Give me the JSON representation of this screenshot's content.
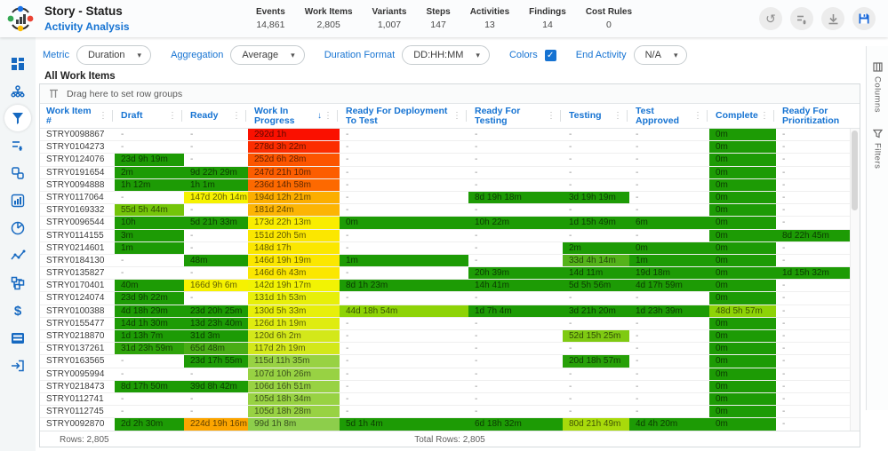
{
  "header": {
    "title": "Story - Status",
    "subtitle": "Activity Analysis",
    "stats": [
      {
        "label": "Events",
        "value": "14,861"
      },
      {
        "label": "Work Items",
        "value": "2,805"
      },
      {
        "label": "Variants",
        "value": "1,007"
      },
      {
        "label": "Steps",
        "value": "147"
      },
      {
        "label": "Activities",
        "value": "13"
      },
      {
        "label": "Findings",
        "value": "14"
      },
      {
        "label": "Cost Rules",
        "value": "0"
      }
    ],
    "actions": [
      "undo",
      "reset-list",
      "download",
      "save"
    ]
  },
  "sidebar_icons": [
    "dashboard",
    "process-map",
    "hourglass-analysis",
    "list-check",
    "flow-shapes",
    "bar-chart",
    "pie-chart",
    "trend-line",
    "hierarchy",
    "cost",
    "table-rows",
    "exit"
  ],
  "toolbar": {
    "metric_label": "Metric",
    "metric_value": "Duration",
    "aggregation_label": "Aggregation",
    "aggregation_value": "Average",
    "duration_format_label": "Duration Format",
    "duration_format_value": "DD:HH:MM",
    "colors_label": "Colors",
    "colors_checked": true,
    "end_activity_label": "End Activity",
    "end_activity_value": "N/A"
  },
  "section_title": "All Work Items",
  "grid": {
    "drag_hint": "Drag here to set row groups",
    "columns": [
      {
        "label": "Work Item #",
        "menu": true
      },
      {
        "label": "Draft",
        "menu": true
      },
      {
        "label": "Ready",
        "menu": true
      },
      {
        "label": "Work In Progress",
        "menu": true,
        "sort": "desc"
      },
      {
        "label": "Ready For Deployment To Test",
        "menu": true
      },
      {
        "label": "Ready For Testing",
        "menu": true
      },
      {
        "label": "Testing",
        "menu": true
      },
      {
        "label": "Test Approved",
        "menu": true
      },
      {
        "label": "Complete",
        "menu": true
      },
      {
        "label": "Ready For Prioritization",
        "menu": false
      }
    ],
    "palette": {
      "g": "#1d9b05",
      "g2": "#2ea30a",
      "g3": "#27a008",
      "gm": "#54b31a",
      "gm2": "#49ad15",
      "yg": "#8ed307",
      "yg2": "#74c509",
      "yg3": "#7fca12",
      "yg4": "#a8da0b",
      "lg": "#98d243",
      "lg2": "#8dce4b",
      "ly1": "#e7ef0a",
      "ly2": "#dfec10",
      "ly3": "#d3e81a",
      "y": "#f6f200",
      "y1": "#f9ed00",
      "y2": "#fbe700",
      "y3": "#f2f303",
      "am": "#fcae00",
      "am2": "#fcb404",
      "or": "#fca500",
      "o1": "#fc5500",
      "o1b": "#fc5d00",
      "o2": "#fd6900",
      "r1": "#fa1000",
      "r2": "#fc2d00"
    },
    "rows": [
      {
        "id": "STRY0098867",
        "cells": [
          "-",
          "-",
          [
            "292d 1h",
            "r1"
          ],
          "-",
          "-",
          "-",
          "-",
          [
            "0m",
            "g"
          ],
          "-"
        ]
      },
      {
        "id": "STRY0104273",
        "cells": [
          "-",
          "-",
          [
            "278d 3h 22m",
            "r2"
          ],
          "-",
          "-",
          "-",
          "-",
          [
            "0m",
            "g"
          ],
          "-"
        ]
      },
      {
        "id": "STRY0124076",
        "cells": [
          [
            "23d 9h 19m",
            "g"
          ],
          "-",
          [
            "252d 6h 28m",
            "o1"
          ],
          "-",
          "-",
          "-",
          "-",
          [
            "0m",
            "g"
          ],
          "-"
        ]
      },
      {
        "id": "STRY0191654",
        "cells": [
          [
            "2m",
            "g"
          ],
          [
            "9d 22h 29m",
            "g"
          ],
          [
            "247d 21h 10m",
            "o1b"
          ],
          "-",
          "-",
          "-",
          "-",
          [
            "0m",
            "g"
          ],
          "-"
        ]
      },
      {
        "id": "STRY0094888",
        "cells": [
          [
            "1h 12m",
            "g"
          ],
          [
            "1h 1m",
            "g"
          ],
          [
            "236d 14h 58m",
            "o2"
          ],
          "-",
          "-",
          "-",
          "-",
          [
            "0m",
            "g"
          ],
          "-"
        ]
      },
      {
        "id": "STRY0117064",
        "cells": [
          "-",
          [
            "147d 20h 14m",
            "y"
          ],
          [
            "194d 12h 21m",
            "am"
          ],
          "-",
          [
            "8d 19h 18m",
            "g"
          ],
          [
            "3d 19h 19m",
            "g"
          ],
          "-",
          [
            "0m",
            "g"
          ],
          "-"
        ]
      },
      {
        "id": "STRY0169332",
        "cells": [
          [
            "55d 5h 44m",
            "yg2"
          ],
          "-",
          [
            "181d 24m",
            "am2"
          ],
          "-",
          "-",
          "-",
          "-",
          [
            "0m",
            "g"
          ],
          "-"
        ]
      },
      {
        "id": "STRY0096544",
        "cells": [
          [
            "10h",
            "g"
          ],
          [
            "5d 21h 33m",
            "g"
          ],
          [
            "173d 22h 13m",
            "y1"
          ],
          [
            "0m",
            "g"
          ],
          [
            "10h 22m",
            "g"
          ],
          [
            "1d 15h 49m",
            "g"
          ],
          [
            "6m",
            "g"
          ],
          [
            "0m",
            "g"
          ],
          "-"
        ]
      },
      {
        "id": "STRY0114155",
        "cells": [
          [
            "3m",
            "g"
          ],
          "-",
          [
            "151d 20h 5m",
            "y2"
          ],
          "-",
          "-",
          "-",
          "-",
          [
            "0m",
            "g"
          ],
          [
            "8d 22h 45m",
            "g"
          ]
        ]
      },
      {
        "id": "STRY0214601",
        "cells": [
          [
            "1m",
            "g"
          ],
          "-",
          [
            "148d 17h",
            "y2"
          ],
          "-",
          "-",
          [
            "2m",
            "g"
          ],
          [
            "0m",
            "g"
          ],
          [
            "0m",
            "g"
          ],
          "-"
        ]
      },
      {
        "id": "STRY0184130",
        "cells": [
          "-",
          [
            "48m",
            "g"
          ],
          [
            "146d 19h 19m",
            "y2"
          ],
          [
            "1m",
            "g"
          ],
          "-",
          [
            "33d 4h 14m",
            "gm"
          ],
          [
            "1m",
            "g"
          ],
          [
            "0m",
            "g"
          ],
          "-"
        ]
      },
      {
        "id": "STRY0135827",
        "cells": [
          "-",
          "-",
          [
            "146d 6h 43m",
            "y2"
          ],
          "-",
          [
            "20h 39m",
            "g"
          ],
          [
            "14d 11m",
            "g"
          ],
          [
            "19d 18m",
            "g"
          ],
          [
            "0m",
            "g"
          ],
          [
            "1d 15h 32m",
            "g"
          ]
        ]
      },
      {
        "id": "STRY0170401",
        "cells": [
          [
            "40m",
            "g"
          ],
          [
            "166d 9h 6m",
            "y"
          ],
          [
            "142d 19h 17m",
            "y3"
          ],
          [
            "8d 1h 23m",
            "g"
          ],
          [
            "14h 41m",
            "g"
          ],
          [
            "5d 5h 56m",
            "g"
          ],
          [
            "4d 17h 59m",
            "g"
          ],
          [
            "0m",
            "g"
          ],
          "-"
        ]
      },
      {
        "id": "STRY0124074",
        "cells": [
          [
            "23d 9h 22m",
            "g"
          ],
          "-",
          [
            "131d 1h 53m",
            "ly1"
          ],
          "-",
          "-",
          "-",
          "-",
          [
            "0m",
            "g"
          ],
          "-"
        ]
      },
      {
        "id": "STRY0100388",
        "cells": [
          [
            "4d 18h 29m",
            "g"
          ],
          [
            "23d 20h 25m",
            "g"
          ],
          [
            "130d 5h 33m",
            "ly1"
          ],
          [
            "44d 18h 54m",
            "yg"
          ],
          [
            "1d 7h 4m",
            "g"
          ],
          [
            "3d 21h 20m",
            "g"
          ],
          [
            "1d 23h 39m",
            "g"
          ],
          [
            "48d 5h 57m",
            "yg"
          ],
          "-"
        ]
      },
      {
        "id": "STRY0155477",
        "cells": [
          [
            "14d 1h 30m",
            "g"
          ],
          [
            "13d 23h 40m",
            "g"
          ],
          [
            "126d 1h 19m",
            "ly2"
          ],
          "-",
          "-",
          "-",
          "-",
          [
            "0m",
            "g"
          ],
          "-"
        ]
      },
      {
        "id": "STRY0218870",
        "cells": [
          [
            "1d 13h 7m",
            "g"
          ],
          [
            "31d 3m",
            "g"
          ],
          [
            "120d 6h 2m",
            "ly3"
          ],
          "-",
          "-",
          [
            "52d 15h 25m",
            "yg3"
          ],
          "-",
          [
            "0m",
            "g"
          ],
          "-"
        ]
      },
      {
        "id": "STRY0137261",
        "cells": [
          [
            "31d 23h 59m",
            "g2"
          ],
          [
            "65d 48m",
            "gm2"
          ],
          [
            "117d 2h 19m",
            "ly3"
          ],
          "-",
          "-",
          "-",
          "-",
          [
            "0m",
            "g"
          ],
          "-"
        ]
      },
      {
        "id": "STRY0163565",
        "cells": [
          "-",
          [
            "23d 17h 55m",
            "g"
          ],
          [
            "115d 11h 35m",
            "lg"
          ],
          "-",
          "-",
          [
            "20d 18h 57m",
            "g3"
          ],
          "-",
          [
            "0m",
            "g"
          ],
          "-"
        ]
      },
      {
        "id": "STRY0095994",
        "cells": [
          "-",
          "-",
          [
            "107d 10h 26m",
            "lg"
          ],
          "-",
          "-",
          "-",
          "-",
          [
            "0m",
            "g"
          ],
          "-"
        ]
      },
      {
        "id": "STRY0218473",
        "cells": [
          [
            "8d 17h 50m",
            "g"
          ],
          [
            "39d 8h 42m",
            "g"
          ],
          [
            "106d 16h 51m",
            "lg"
          ],
          "-",
          "-",
          "-",
          "-",
          [
            "0m",
            "g"
          ],
          "-"
        ]
      },
      {
        "id": "STRY0112741",
        "cells": [
          "-",
          "-",
          [
            "105d 18h 34m",
            "lg"
          ],
          "-",
          "-",
          "-",
          "-",
          [
            "0m",
            "g"
          ],
          "-"
        ]
      },
      {
        "id": "STRY0112745",
        "cells": [
          "-",
          "-",
          [
            "105d 18h 28m",
            "lg"
          ],
          "-",
          "-",
          "-",
          "-",
          [
            "0m",
            "g"
          ],
          "-"
        ]
      },
      {
        "id": "STRY0092870",
        "cells": [
          [
            "2d 2h 30m",
            "g"
          ],
          [
            "224d 19h 16m",
            "or"
          ],
          [
            "99d 1h 8m",
            "lg2"
          ],
          [
            "5d 1h 4m",
            "g"
          ],
          [
            "6d 18h 32m",
            "g"
          ],
          [
            "80d 21h 49m",
            "yg4"
          ],
          [
            "4d 4h 20m",
            "g"
          ],
          [
            "0m",
            "g"
          ],
          "-"
        ]
      }
    ],
    "footer": {
      "rows_label": "Rows: 2,805",
      "total_rows_label": "Total Rows: 2,805"
    }
  },
  "rail": {
    "columns_tab": "Columns",
    "filters_tab": "Filters"
  }
}
